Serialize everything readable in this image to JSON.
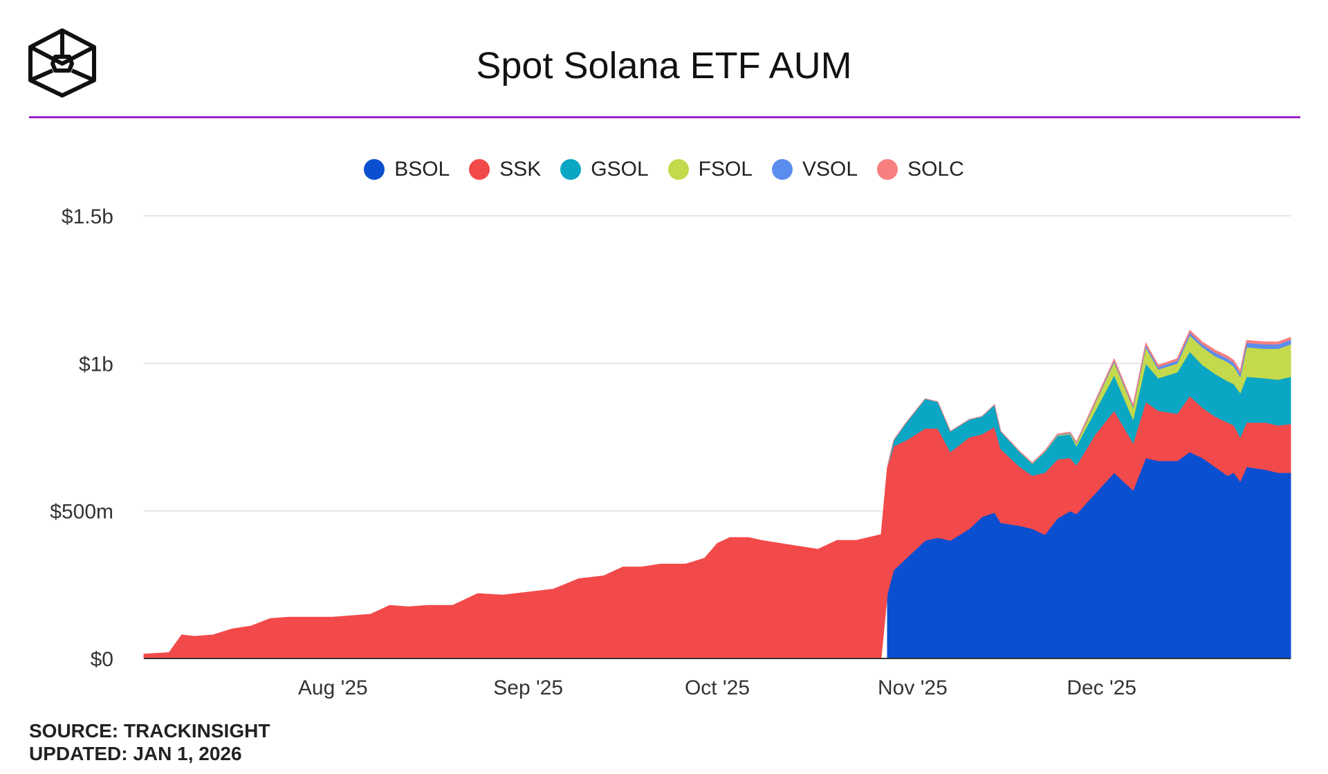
{
  "title": "Spot Solana ETF AUM",
  "footer": {
    "source": "SOURCE: TRACKINSIGHT",
    "updated": "UPDATED: JAN 1, 2026"
  },
  "colors": {
    "title_rule": "#a021c8",
    "grid": "#e6e6e6",
    "axis": "#333333"
  },
  "chart_data": {
    "type": "area",
    "stacked": true,
    "title": "Spot Solana ETF AUM",
    "xlabel": "",
    "ylabel": "",
    "ylim": [
      0,
      1500
    ],
    "y_unit": "$ millions",
    "y_ticks": [
      {
        "value": 0,
        "label": "$0"
      },
      {
        "value": 500,
        "label": "$500m"
      },
      {
        "value": 1000,
        "label": "$1b"
      },
      {
        "value": 1500,
        "label": "$1.5b"
      }
    ],
    "xlim": [
      "2025-07-02",
      "2025-12-31"
    ],
    "x_ticks": [
      {
        "date": "2025-08-01",
        "label": "Aug '25"
      },
      {
        "date": "2025-09-01",
        "label": "Sep '25"
      },
      {
        "date": "2025-10-01",
        "label": "Oct '25"
      },
      {
        "date": "2025-11-01",
        "label": "Nov '25"
      },
      {
        "date": "2025-12-01",
        "label": "Dec '25"
      }
    ],
    "grid": true,
    "legend_position": "top-center",
    "series": [
      {
        "name": "BSOL",
        "color": "#0b4fd1",
        "points": [
          [
            "2025-10-28",
            220
          ],
          [
            "2025-10-29",
            300
          ],
          [
            "2025-10-31",
            340
          ],
          [
            "2025-11-03",
            400
          ],
          [
            "2025-11-05",
            410
          ],
          [
            "2025-11-07",
            400
          ],
          [
            "2025-11-10",
            440
          ],
          [
            "2025-11-12",
            480
          ],
          [
            "2025-11-14",
            495
          ],
          [
            "2025-11-15",
            460
          ],
          [
            "2025-11-18",
            450
          ],
          [
            "2025-11-20",
            440
          ],
          [
            "2025-11-22",
            420
          ],
          [
            "2025-11-24",
            475
          ],
          [
            "2025-11-26",
            500
          ],
          [
            "2025-11-27",
            490
          ],
          [
            "2025-11-30",
            560
          ],
          [
            "2025-12-03",
            630
          ],
          [
            "2025-12-06",
            570
          ],
          [
            "2025-12-08",
            680
          ],
          [
            "2025-12-10",
            670
          ],
          [
            "2025-12-13",
            670
          ],
          [
            "2025-12-15",
            700
          ],
          [
            "2025-12-17",
            680
          ],
          [
            "2025-12-19",
            650
          ],
          [
            "2025-12-21",
            620
          ],
          [
            "2025-12-22",
            630
          ],
          [
            "2025-12-23",
            600
          ],
          [
            "2025-12-24",
            650
          ],
          [
            "2025-12-27",
            640
          ],
          [
            "2025-12-29",
            630
          ],
          [
            "2025-12-31",
            630
          ]
        ]
      },
      {
        "name": "SSK",
        "color": "#f24a4a",
        "points": [
          [
            "2025-07-02",
            15
          ],
          [
            "2025-07-06",
            20
          ],
          [
            "2025-07-08",
            80
          ],
          [
            "2025-07-10",
            75
          ],
          [
            "2025-07-13",
            80
          ],
          [
            "2025-07-16",
            100
          ],
          [
            "2025-07-19",
            110
          ],
          [
            "2025-07-22",
            135
          ],
          [
            "2025-07-25",
            140
          ],
          [
            "2025-07-28",
            140
          ],
          [
            "2025-08-01",
            140
          ],
          [
            "2025-08-04",
            145
          ],
          [
            "2025-08-07",
            150
          ],
          [
            "2025-08-10",
            180
          ],
          [
            "2025-08-13",
            175
          ],
          [
            "2025-08-16",
            180
          ],
          [
            "2025-08-20",
            180
          ],
          [
            "2025-08-24",
            220
          ],
          [
            "2025-08-28",
            215
          ],
          [
            "2025-09-01",
            225
          ],
          [
            "2025-09-05",
            235
          ],
          [
            "2025-09-09",
            270
          ],
          [
            "2025-09-13",
            280
          ],
          [
            "2025-09-16",
            310
          ],
          [
            "2025-09-19",
            310
          ],
          [
            "2025-09-22",
            320
          ],
          [
            "2025-09-26",
            320
          ],
          [
            "2025-09-29",
            340
          ],
          [
            "2025-10-01",
            390
          ],
          [
            "2025-10-03",
            410
          ],
          [
            "2025-10-06",
            410
          ],
          [
            "2025-10-08",
            400
          ],
          [
            "2025-10-11",
            390
          ],
          [
            "2025-10-14",
            380
          ],
          [
            "2025-10-17",
            370
          ],
          [
            "2025-10-20",
            400
          ],
          [
            "2025-10-23",
            400
          ],
          [
            "2025-10-25",
            410
          ],
          [
            "2025-10-27",
            420
          ],
          [
            "2025-10-28",
            430
          ],
          [
            "2025-10-29",
            420
          ],
          [
            "2025-10-31",
            400
          ],
          [
            "2025-11-03",
            380
          ],
          [
            "2025-11-05",
            370
          ],
          [
            "2025-11-07",
            300
          ],
          [
            "2025-11-10",
            310
          ],
          [
            "2025-11-12",
            280
          ],
          [
            "2025-11-14",
            290
          ],
          [
            "2025-11-15",
            250
          ],
          [
            "2025-11-18",
            200
          ],
          [
            "2025-11-20",
            180
          ],
          [
            "2025-11-22",
            210
          ],
          [
            "2025-11-24",
            200
          ],
          [
            "2025-11-26",
            180
          ],
          [
            "2025-11-27",
            165
          ],
          [
            "2025-11-30",
            200
          ],
          [
            "2025-12-03",
            210
          ],
          [
            "2025-12-06",
            160
          ],
          [
            "2025-12-08",
            190
          ],
          [
            "2025-12-10",
            170
          ],
          [
            "2025-12-13",
            160
          ],
          [
            "2025-12-15",
            190
          ],
          [
            "2025-12-17",
            170
          ],
          [
            "2025-12-19",
            170
          ],
          [
            "2025-12-21",
            180
          ],
          [
            "2025-12-22",
            160
          ],
          [
            "2025-12-23",
            150
          ],
          [
            "2025-12-24",
            150
          ],
          [
            "2025-12-27",
            160
          ],
          [
            "2025-12-29",
            160
          ],
          [
            "2025-12-31",
            165
          ]
        ]
      },
      {
        "name": "GSOL",
        "color": "#0ba6c4",
        "points": [
          [
            "2025-10-28",
            0
          ],
          [
            "2025-10-29",
            20
          ],
          [
            "2025-10-31",
            60
          ],
          [
            "2025-11-03",
            100
          ],
          [
            "2025-11-05",
            90
          ],
          [
            "2025-11-07",
            70
          ],
          [
            "2025-11-10",
            60
          ],
          [
            "2025-11-12",
            60
          ],
          [
            "2025-11-14",
            75
          ],
          [
            "2025-11-15",
            60
          ],
          [
            "2025-11-18",
            50
          ],
          [
            "2025-11-20",
            40
          ],
          [
            "2025-11-22",
            70
          ],
          [
            "2025-11-24",
            80
          ],
          [
            "2025-11-26",
            80
          ],
          [
            "2025-11-27",
            65
          ],
          [
            "2025-11-30",
            80
          ],
          [
            "2025-12-03",
            120
          ],
          [
            "2025-12-06",
            80
          ],
          [
            "2025-12-08",
            130
          ],
          [
            "2025-12-10",
            110
          ],
          [
            "2025-12-13",
            140
          ],
          [
            "2025-12-15",
            150
          ],
          [
            "2025-12-17",
            145
          ],
          [
            "2025-12-19",
            145
          ],
          [
            "2025-12-21",
            140
          ],
          [
            "2025-12-22",
            140
          ],
          [
            "2025-12-23",
            150
          ],
          [
            "2025-12-24",
            155
          ],
          [
            "2025-12-27",
            150
          ],
          [
            "2025-12-29",
            155
          ],
          [
            "2025-12-31",
            160
          ]
        ]
      },
      {
        "name": "FSOL",
        "color": "#c4d94b",
        "points": [
          [
            "2025-10-28",
            0
          ],
          [
            "2025-11-15",
            0
          ],
          [
            "2025-11-26",
            3
          ],
          [
            "2025-12-03",
            45
          ],
          [
            "2025-12-06",
            40
          ],
          [
            "2025-12-08",
            55
          ],
          [
            "2025-12-10",
            30
          ],
          [
            "2025-12-13",
            30
          ],
          [
            "2025-12-15",
            55
          ],
          [
            "2025-12-17",
            60
          ],
          [
            "2025-12-19",
            60
          ],
          [
            "2025-12-21",
            65
          ],
          [
            "2025-12-22",
            60
          ],
          [
            "2025-12-23",
            55
          ],
          [
            "2025-12-24",
            100
          ],
          [
            "2025-12-27",
            100
          ],
          [
            "2025-12-29",
            105
          ],
          [
            "2025-12-31",
            110
          ]
        ]
      },
      {
        "name": "VSOL",
        "color": "#5b8def",
        "points": [
          [
            "2025-10-28",
            0
          ],
          [
            "2025-11-15",
            0
          ],
          [
            "2025-11-26",
            2
          ],
          [
            "2025-12-03",
            5
          ],
          [
            "2025-12-06",
            5
          ],
          [
            "2025-12-08",
            8
          ],
          [
            "2025-12-10",
            8
          ],
          [
            "2025-12-13",
            10
          ],
          [
            "2025-12-15",
            10
          ],
          [
            "2025-12-17",
            10
          ],
          [
            "2025-12-19",
            12
          ],
          [
            "2025-12-21",
            12
          ],
          [
            "2025-12-22",
            12
          ],
          [
            "2025-12-23",
            12
          ],
          [
            "2025-12-24",
            15
          ],
          [
            "2025-12-27",
            15
          ],
          [
            "2025-12-29",
            15
          ],
          [
            "2025-12-31",
            15
          ]
        ]
      },
      {
        "name": "SOLC",
        "color": "#f77f7f",
        "points": [
          [
            "2025-10-28",
            0
          ],
          [
            "2025-11-15",
            0
          ],
          [
            "2025-11-26",
            2
          ],
          [
            "2025-12-03",
            5
          ],
          [
            "2025-12-06",
            5
          ],
          [
            "2025-12-08",
            6
          ],
          [
            "2025-12-10",
            6
          ],
          [
            "2025-12-13",
            6
          ],
          [
            "2025-12-15",
            7
          ],
          [
            "2025-12-17",
            7
          ],
          [
            "2025-12-19",
            8
          ],
          [
            "2025-12-21",
            8
          ],
          [
            "2025-12-22",
            8
          ],
          [
            "2025-12-23",
            8
          ],
          [
            "2025-12-24",
            8
          ],
          [
            "2025-12-27",
            8
          ],
          [
            "2025-12-29",
            8
          ],
          [
            "2025-12-31",
            8
          ]
        ]
      }
    ]
  }
}
